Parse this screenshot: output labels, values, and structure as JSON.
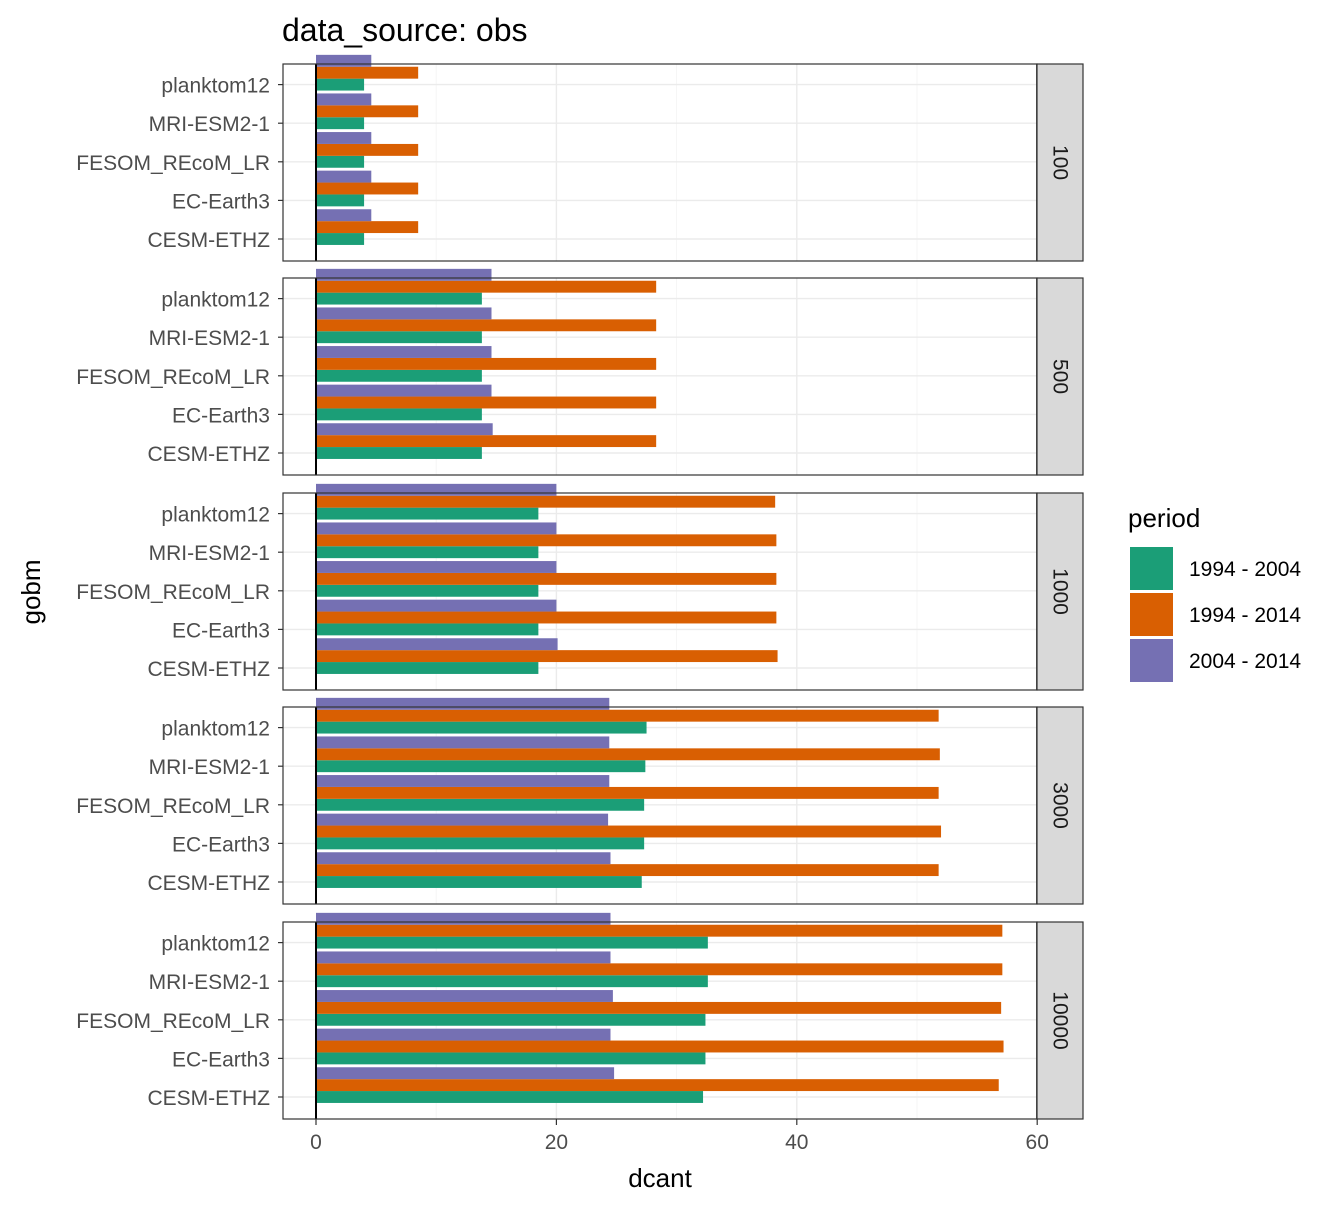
{
  "chart_data": {
    "type": "bar",
    "orientation": "horizontal",
    "facet": "rows",
    "title": "data_source: obs",
    "xlabel": "dcant",
    "ylabel": "gobm",
    "xlim": [
      -2.7,
      63
    ],
    "xticks": [
      0,
      20,
      40,
      60
    ],
    "grid": true,
    "legend": {
      "title": "period",
      "position": "right"
    },
    "categories": [
      "CESM-ETHZ",
      "EC-Earth3",
      "FESOM_REcoM_LR",
      "MRI-ESM2-1",
      "planktom12"
    ],
    "series_names": [
      "1994 - 2004",
      "1994 - 2014",
      "2004 - 2014"
    ],
    "colors": {
      "1994 - 2004": "#1b9e77",
      "1994 - 2014": "#d95f02",
      "2004 - 2014": "#7570b3"
    },
    "facets": [
      {
        "label": "100",
        "series": [
          {
            "name": "1994 - 2004",
            "values": [
              4.0,
              4.0,
              4.0,
              4.0,
              4.0
            ]
          },
          {
            "name": "1994 - 2014",
            "values": [
              8.5,
              8.5,
              8.5,
              8.5,
              8.5
            ]
          },
          {
            "name": "2004 - 2014",
            "values": [
              4.6,
              4.6,
              4.6,
              4.6,
              4.6
            ]
          }
        ]
      },
      {
        "label": "500",
        "series": [
          {
            "name": "1994 - 2004",
            "values": [
              13.8,
              13.8,
              13.8,
              13.8,
              13.8
            ]
          },
          {
            "name": "1994 - 2014",
            "values": [
              28.3,
              28.3,
              28.3,
              28.3,
              28.3
            ]
          },
          {
            "name": "2004 - 2014",
            "values": [
              14.7,
              14.6,
              14.6,
              14.6,
              14.6
            ]
          }
        ]
      },
      {
        "label": "1000",
        "series": [
          {
            "name": "1994 - 2004",
            "values": [
              18.5,
              18.5,
              18.5,
              18.5,
              18.5
            ]
          },
          {
            "name": "1994 - 2014",
            "values": [
              38.4,
              38.3,
              38.3,
              38.3,
              38.2
            ]
          },
          {
            "name": "2004 - 2014",
            "values": [
              20.1,
              20.0,
              20.0,
              20.0,
              20.0
            ]
          }
        ]
      },
      {
        "label": "3000",
        "series": [
          {
            "name": "1994 - 2004",
            "values": [
              27.1,
              27.3,
              27.3,
              27.4,
              27.5
            ]
          },
          {
            "name": "1994 - 2014",
            "values": [
              51.8,
              52.0,
              51.8,
              51.9,
              51.8
            ]
          },
          {
            "name": "2004 - 2014",
            "values": [
              24.5,
              24.3,
              24.4,
              24.4,
              24.4
            ]
          }
        ]
      },
      {
        "label": "10000",
        "series": [
          {
            "name": "1994 - 2004",
            "values": [
              32.2,
              32.4,
              32.4,
              32.6,
              32.6
            ]
          },
          {
            "name": "1994 - 2014",
            "values": [
              56.8,
              57.2,
              57.0,
              57.1,
              57.1
            ]
          },
          {
            "name": "2004 - 2014",
            "values": [
              24.8,
              24.5,
              24.7,
              24.5,
              24.5
            ]
          }
        ]
      }
    ]
  }
}
